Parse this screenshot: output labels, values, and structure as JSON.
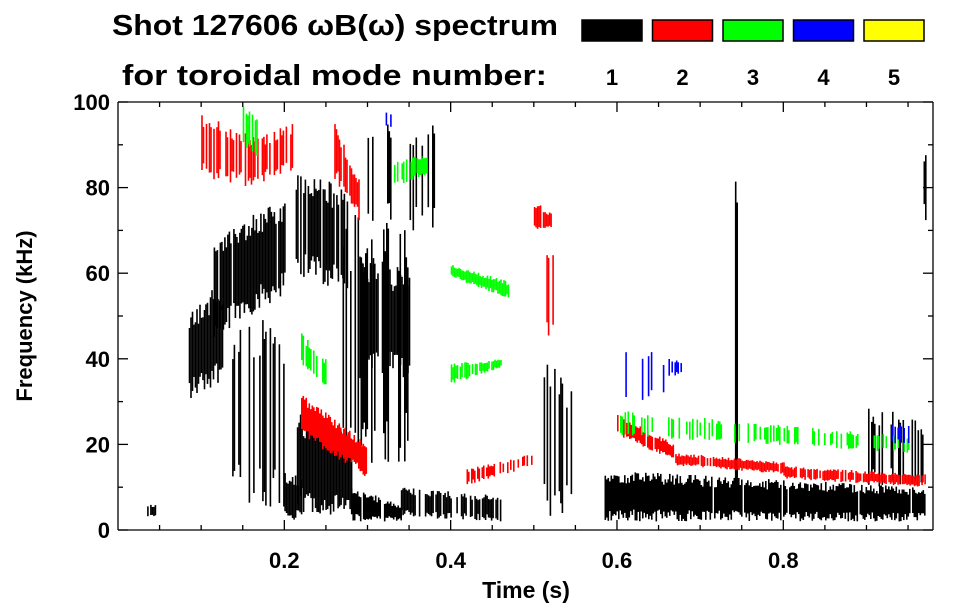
{
  "chart_data": {
    "type": "heatmap",
    "title_line1": "Shot 127606 ωB(ω) spectrum",
    "title_line2": "for toroidal mode number:",
    "xlabel": "Time (s)",
    "ylabel": "Frequency (kHz)",
    "xlim": [
      0.0,
      0.98
    ],
    "ylim": [
      0,
      100
    ],
    "xticks": [
      0.2,
      0.4,
      0.6,
      0.8
    ],
    "xtick_labels": [
      "0.2",
      "0.4",
      "0.6",
      "0.8"
    ],
    "yticks": [
      0,
      20,
      40,
      60,
      80,
      100
    ],
    "ytick_labels": [
      "0",
      "20",
      "40",
      "60",
      "80",
      "100"
    ],
    "legend": [
      {
        "label": "1",
        "color": "#000000"
      },
      {
        "label": "2",
        "color": "#ff0000"
      },
      {
        "label": "3",
        "color": "#00ff00"
      },
      {
        "label": "4",
        "color": "#0000ff"
      },
      {
        "label": "5",
        "color": "#ffff00"
      }
    ],
    "series": [
      {
        "mode": "1",
        "color": "#000000",
        "bands": [
          [
            0.035,
            0.045,
            3,
            6,
            3,
            6,
            0.9
          ],
          [
            0.085,
            0.125,
            30,
            52,
            35,
            58,
            0.95
          ],
          [
            0.115,
            0.2,
            45,
            70,
            55,
            78,
            0.9
          ],
          [
            0.13,
            0.2,
            5,
            50,
            5,
            50,
            0.5
          ],
          [
            0.2,
            0.22,
            2,
            14,
            2,
            12,
            0.8
          ],
          [
            0.215,
            0.28,
            4,
            28,
            3,
            22,
            0.95
          ],
          [
            0.21,
            0.28,
            60,
            84,
            55,
            80,
            0.8
          ],
          [
            0.28,
            0.34,
            2,
            10,
            2,
            6,
            0.95
          ],
          [
            0.29,
            0.35,
            35,
            66,
            35,
            60,
            0.85
          ],
          [
            0.27,
            0.35,
            15,
            75,
            15,
            70,
            0.35
          ],
          [
            0.34,
            0.46,
            3,
            10,
            2,
            8,
            0.75
          ],
          [
            0.3,
            0.38,
            70,
            98,
            70,
            95,
            0.25
          ],
          [
            0.51,
            0.555,
            2,
            40,
            2,
            35,
            0.3
          ],
          [
            0.585,
            0.97,
            2,
            14,
            2,
            10,
            0.97
          ],
          [
            0.9,
            0.97,
            10,
            30,
            10,
            25,
            0.4
          ],
          [
            0.74,
            0.75,
            0,
            100,
            0,
            100,
            0.3
          ],
          [
            0.965,
            0.975,
            72,
            90,
            72,
            90,
            0.5
          ]
        ]
      },
      {
        "mode": "2",
        "color": "#ff0000",
        "bands": [
          [
            0.1,
            0.16,
            82,
            98,
            80,
            92,
            0.6
          ],
          [
            0.16,
            0.21,
            80,
            92,
            84,
            95,
            0.5
          ],
          [
            0.22,
            0.3,
            22,
            32,
            12,
            20,
            0.95
          ],
          [
            0.26,
            0.29,
            82,
            95,
            72,
            82,
            0.8
          ],
          [
            0.41,
            0.5,
            10,
            14,
            15,
            18,
            0.5
          ],
          [
            0.5,
            0.52,
            70,
            77,
            70,
            74,
            0.8
          ],
          [
            0.515,
            0.525,
            45,
            65,
            45,
            65,
            0.5
          ],
          [
            0.6,
            0.67,
            22,
            27,
            16,
            20,
            0.95
          ],
          [
            0.67,
            0.8,
            15,
            18,
            13,
            16,
            0.95
          ],
          [
            0.8,
            0.97,
            12,
            15,
            10,
            13,
            0.9
          ]
        ]
      },
      {
        "mode": "3",
        "color": "#00ff00",
        "bands": [
          [
            0.15,
            0.17,
            90,
            100,
            85,
            95,
            0.5
          ],
          [
            0.22,
            0.25,
            38,
            46,
            33,
            40,
            0.7
          ],
          [
            0.33,
            0.37,
            80,
            86,
            83,
            88,
            0.6
          ],
          [
            0.4,
            0.47,
            59,
            62,
            54,
            58,
            0.95
          ],
          [
            0.4,
            0.46,
            34,
            39,
            38,
            40,
            0.85
          ],
          [
            0.6,
            0.95,
            22,
            28,
            18,
            22,
            0.35
          ]
        ]
      },
      {
        "mode": "4",
        "color": "#0000ff",
        "bands": [
          [
            0.61,
            0.66,
            30,
            45,
            30,
            40,
            0.25
          ],
          [
            0.66,
            0.68,
            36,
            40,
            36,
            40,
            0.5
          ],
          [
            0.93,
            0.95,
            20,
            25,
            20,
            25,
            0.5
          ],
          [
            0.32,
            0.33,
            94,
            98,
            94,
            98,
            0.5
          ]
        ]
      },
      {
        "mode": "5",
        "color": "#ffff00",
        "bands": []
      }
    ]
  }
}
